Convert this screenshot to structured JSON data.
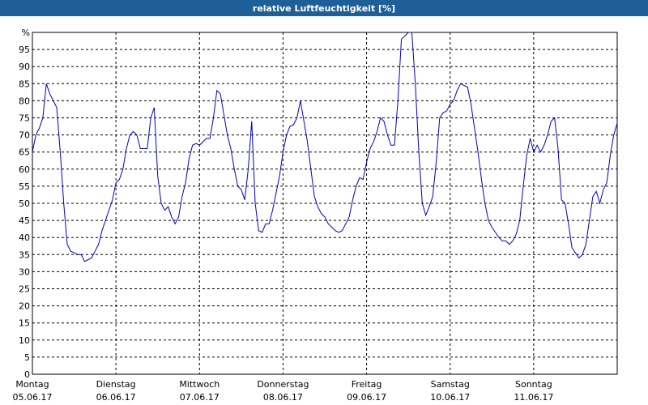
{
  "chart_data": {
    "type": "line",
    "title": "relative Luftfeuchtigkeit [%]",
    "xlim": [
      0,
      168
    ],
    "xticks": [
      {
        "value": 0,
        "label": "Montag",
        "date": "05.06.17"
      },
      {
        "value": 24,
        "label": "Dienstag",
        "date": "06.06.17"
      },
      {
        "value": 48,
        "label": "Mittwoch",
        "date": "07.06.17"
      },
      {
        "value": 72,
        "label": "Donnerstag",
        "date": "08.06.17"
      },
      {
        "value": 96,
        "label": "Freitag",
        "date": "09.06.17"
      },
      {
        "value": 120,
        "label": "Samstag",
        "date": "10.06.17"
      },
      {
        "value": 144,
        "label": "Sonntag",
        "date": "11.06.17"
      }
    ],
    "ylim": [
      0,
      100
    ],
    "yticks": [
      0,
      5,
      10,
      15,
      20,
      25,
      30,
      35,
      40,
      45,
      50,
      55,
      60,
      65,
      70,
      75,
      80,
      85,
      90,
      95,
      {
        "value": 100,
        "label": "%"
      }
    ],
    "grid": true,
    "series": [
      {
        "color": "#0000c8",
        "x": [
          0,
          1,
          2,
          3,
          4,
          5,
          6,
          7,
          8,
          9,
          10,
          11,
          12,
          13,
          14,
          15,
          16,
          17,
          18,
          19,
          20,
          21,
          22,
          23,
          24,
          25,
          26,
          27,
          28,
          29,
          30,
          31,
          32,
          33,
          34,
          35,
          36,
          37,
          38,
          39,
          40,
          41,
          42,
          43,
          44,
          45,
          46,
          47,
          48,
          49,
          50,
          51,
          52,
          53,
          54,
          55,
          56,
          57,
          58,
          59,
          60,
          61,
          62,
          63,
          64,
          65,
          66,
          67,
          68,
          69,
          70,
          71,
          72,
          73,
          74,
          75,
          76,
          77,
          78,
          79,
          80,
          81,
          82,
          83,
          84,
          85,
          86,
          87,
          88,
          89,
          90,
          91,
          92,
          93,
          94,
          95,
          96,
          97,
          98,
          99,
          100,
          101,
          102,
          103,
          104,
          105,
          106,
          107,
          108,
          109,
          110,
          111,
          112,
          113,
          114,
          115,
          116,
          117,
          118,
          119,
          120,
          121,
          122,
          123,
          124,
          125,
          126,
          127,
          128,
          129,
          130,
          131,
          132,
          133,
          134,
          135,
          136,
          137,
          138,
          139,
          140,
          141,
          142,
          143,
          144,
          145,
          146,
          147,
          148,
          149,
          150,
          151,
          152,
          153,
          154,
          155,
          156,
          157,
          158,
          159,
          160,
          161,
          162,
          163,
          164,
          165,
          166,
          167,
          168
        ],
        "values": [
          65,
          70,
          72,
          75,
          85,
          82,
          80,
          78,
          65,
          50,
          38,
          36,
          35.5,
          35,
          35,
          33,
          33.5,
          34,
          36,
          38,
          42,
          45,
          48,
          51,
          56,
          57,
          60,
          66,
          70,
          71,
          70,
          66,
          66,
          66,
          75,
          78,
          58,
          50,
          48,
          49,
          46,
          44,
          46,
          52,
          56,
          63,
          67,
          67.5,
          67,
          68,
          69,
          69,
          75,
          83,
          82,
          76,
          70,
          66,
          60,
          55,
          54,
          51,
          60,
          74,
          50,
          42,
          41.5,
          44,
          44,
          48,
          53,
          58,
          65,
          70,
          72.5,
          73,
          75,
          80,
          74,
          68,
          60,
          52,
          49,
          47,
          46,
          44,
          43,
          42,
          41.5,
          42,
          44,
          46,
          51,
          55,
          57.5,
          57,
          62,
          66,
          68,
          71,
          75,
          74,
          70,
          67,
          67,
          80,
          98,
          99,
          100,
          100,
          85,
          65,
          50,
          46.5,
          49,
          52,
          62,
          75,
          76.5,
          77,
          79,
          80,
          83,
          85,
          84.5,
          84,
          79,
          72,
          65,
          57,
          50,
          45,
          43,
          41.5,
          40,
          39,
          39,
          38,
          39,
          41,
          45,
          55,
          64,
          69,
          65,
          67,
          65,
          67,
          70,
          74,
          75,
          66,
          51,
          50,
          44,
          37,
          35.5,
          34,
          35,
          38,
          45,
          52,
          53.5,
          50,
          54,
          56,
          64,
          70,
          73.5
        ]
      }
    ]
  }
}
